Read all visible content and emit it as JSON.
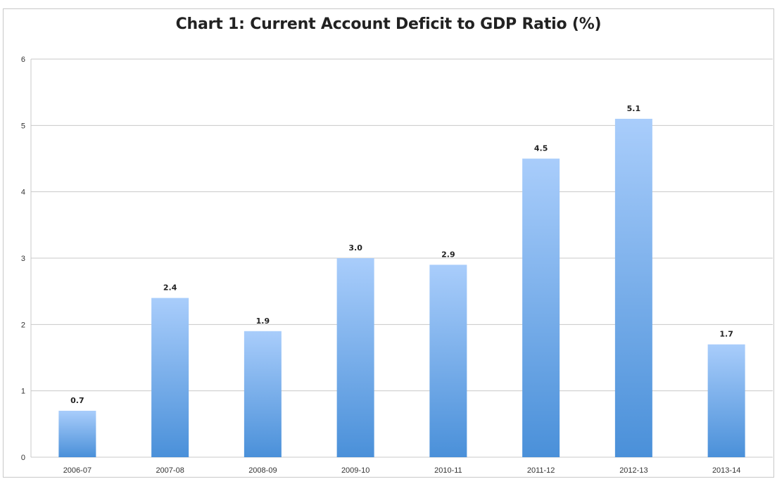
{
  "chart_data": {
    "type": "bar",
    "title": "Chart 1: Current Account Deficit to GDP Ratio (%)",
    "xlabel": "",
    "ylabel": "",
    "categories": [
      "2006-07",
      "2007-08",
      "2008-09",
      "2009-10",
      "2010-11",
      "2011-12",
      "2012-13",
      "2013-14"
    ],
    "values": [
      0.7,
      2.4,
      1.9,
      3.0,
      2.9,
      4.5,
      5.1,
      1.7
    ],
    "data_labels": [
      "0.7",
      "2.4",
      "1.9",
      "3.0",
      "2.9",
      "4.5",
      "5.1",
      "1.7"
    ],
    "y_ticks": [
      "0",
      "1",
      "2",
      "3",
      "4",
      "5",
      "6"
    ],
    "ylim": [
      0,
      6
    ],
    "grid": true,
    "legend": "none",
    "colors": {
      "bar_top": "#a9cdfb",
      "bar_bottom": "#4a90d9",
      "gridline": "#c8c8c8"
    }
  }
}
